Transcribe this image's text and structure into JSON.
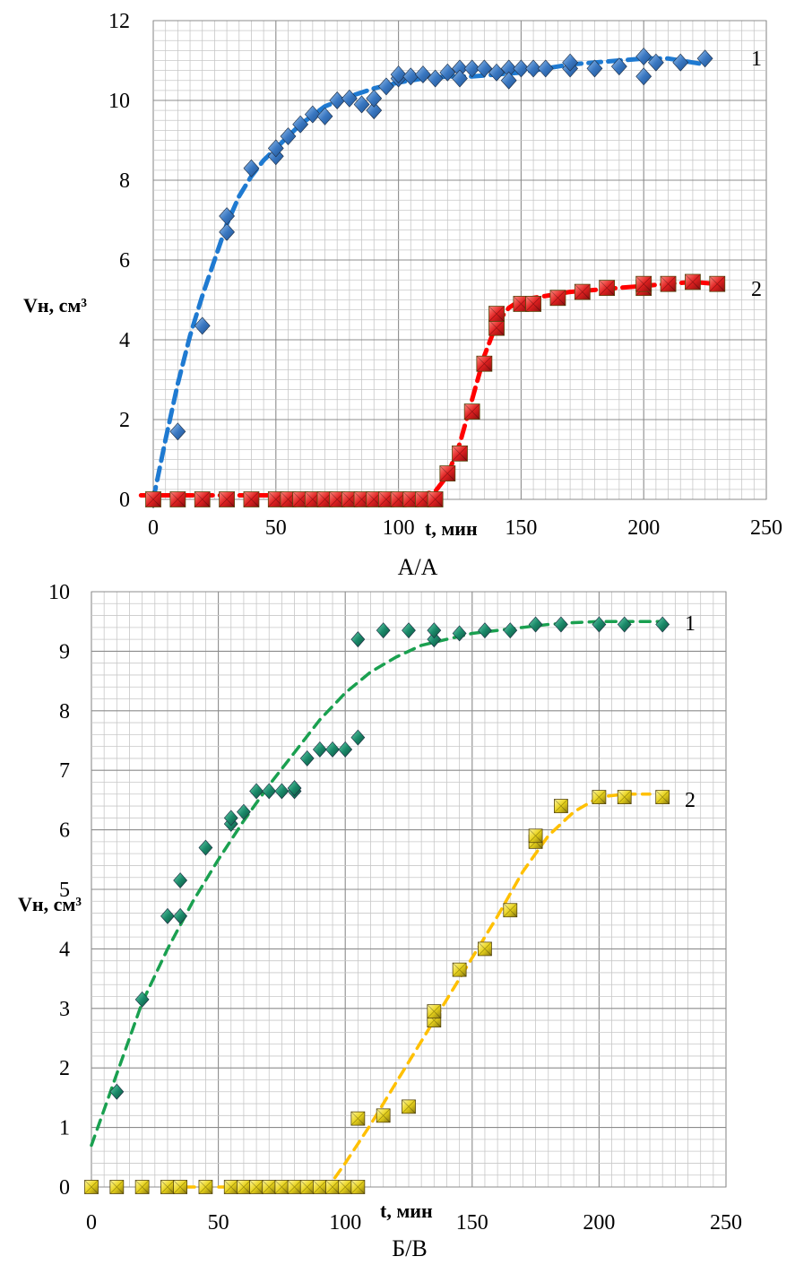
{
  "chart_data": [
    {
      "type": "scatter",
      "caption": "А/А",
      "ylabel": "Vн, см³",
      "xlabel": "t, мин",
      "xlim": [
        0,
        250
      ],
      "ylim": [
        0,
        12
      ],
      "xticks": [
        "0",
        "50",
        "100",
        "150",
        "200",
        "250"
      ],
      "yticks": [
        "0",
        "2",
        "4",
        "6",
        "8",
        "10",
        "12"
      ],
      "grid": true,
      "series": [
        {
          "name": "1",
          "marker": "diamond",
          "color": "#3a78c2",
          "trend_color": "#1f7ad1",
          "x": [
            0,
            10,
            20,
            30,
            30,
            40,
            50,
            50,
            55,
            60,
            65,
            70,
            75,
            80,
            85,
            90,
            90,
            95,
            100,
            100,
            105,
            110,
            115,
            120,
            125,
            125,
            130,
            135,
            140,
            145,
            145,
            150,
            155,
            160,
            170,
            170,
            180,
            190,
            200,
            200,
            205,
            215,
            225
          ],
          "y": [
            0,
            1.7,
            4.35,
            6.7,
            7.1,
            8.3,
            8.6,
            8.8,
            9.1,
            9.4,
            9.65,
            9.6,
            10.0,
            10.05,
            9.9,
            9.75,
            10.05,
            10.35,
            10.55,
            10.65,
            10.6,
            10.65,
            10.55,
            10.7,
            10.8,
            10.55,
            10.8,
            10.8,
            10.7,
            10.8,
            10.5,
            10.8,
            10.8,
            10.8,
            10.8,
            10.95,
            10.8,
            10.85,
            10.6,
            11.1,
            10.95,
            10.95,
            11.05
          ],
          "trend_x": [
            0,
            5,
            10,
            15,
            20,
            25,
            30,
            35,
            40,
            45,
            50,
            60,
            70,
            80,
            90,
            100,
            110,
            120,
            130,
            140,
            150,
            160,
            170,
            180,
            190,
            200,
            210,
            220,
            225
          ],
          "trend_y": [
            0,
            1.5,
            2.9,
            4.1,
            5.1,
            6.0,
            6.9,
            7.6,
            8.1,
            8.5,
            8.8,
            9.4,
            9.85,
            10.1,
            10.3,
            10.45,
            10.55,
            10.6,
            10.6,
            10.65,
            10.7,
            10.8,
            10.9,
            10.95,
            11.0,
            11.05,
            11.05,
            10.95,
            10.9
          ]
        },
        {
          "name": "2",
          "marker": "square",
          "color": "#e02020",
          "trend_color": "#ff0000",
          "x": [
            0,
            10,
            20,
            30,
            40,
            50,
            55,
            60,
            65,
            70,
            75,
            80,
            85,
            90,
            95,
            100,
            105,
            110,
            115,
            120,
            125,
            130,
            135,
            140,
            140,
            150,
            155,
            165,
            175,
            185,
            200,
            200,
            210,
            220,
            230
          ],
          "y": [
            0,
            0,
            0,
            0,
            0,
            0,
            0,
            0,
            0,
            0,
            0,
            0,
            0,
            0,
            0,
            0,
            0,
            0,
            0,
            0.65,
            1.15,
            2.2,
            3.4,
            4.3,
            4.65,
            4.9,
            4.9,
            5.05,
            5.2,
            5.3,
            5.3,
            5.4,
            5.4,
            5.45,
            5.4
          ],
          "trend_x": [
            -5,
            0,
            20,
            40,
            60,
            80,
            100,
            110,
            115,
            120,
            125,
            130,
            135,
            140,
            145,
            150,
            160,
            170,
            180,
            190,
            200,
            210,
            220,
            230
          ],
          "trend_y": [
            0.1,
            0.1,
            0.1,
            0.1,
            0.1,
            0.1,
            0.1,
            0.12,
            0.2,
            0.6,
            1.4,
            2.5,
            3.6,
            4.4,
            4.8,
            5.0,
            5.1,
            5.2,
            5.25,
            5.3,
            5.35,
            5.4,
            5.45,
            5.4
          ]
        }
      ]
    },
    {
      "type": "scatter",
      "caption": "Б/В",
      "ylabel": "Vн, см³",
      "xlabel": "t, мин",
      "xlim": [
        0,
        250
      ],
      "ylim": [
        0,
        10
      ],
      "xticks": [
        "0",
        "50",
        "100",
        "150",
        "200",
        "250"
      ],
      "yticks": [
        "0",
        "1",
        "2",
        "3",
        "4",
        "5",
        "6",
        "7",
        "8",
        "9",
        "10"
      ],
      "grid": true,
      "series": [
        {
          "name": "1",
          "marker": "diamond",
          "color": "#1a8a6a",
          "trend_color": "#1aa050",
          "x": [
            10,
            20,
            30,
            35,
            35,
            45,
            55,
            55,
            60,
            65,
            70,
            75,
            80,
            80,
            85,
            90,
            95,
            100,
            105,
            105,
            115,
            125,
            135,
            135,
            145,
            155,
            165,
            175,
            185,
            200,
            210,
            225
          ],
          "y": [
            1.6,
            3.15,
            4.55,
            4.55,
            5.15,
            5.7,
            6.1,
            6.2,
            6.3,
            6.65,
            6.65,
            6.65,
            6.65,
            6.7,
            7.2,
            7.35,
            7.35,
            7.35,
            7.55,
            9.2,
            9.35,
            9.35,
            9.2,
            9.35,
            9.3,
            9.35,
            9.35,
            9.45,
            9.45,
            9.45,
            9.45,
            9.45
          ],
          "trend_x": [
            0,
            5,
            10,
            15,
            20,
            30,
            40,
            50,
            60,
            70,
            80,
            90,
            100,
            110,
            120,
            130,
            140,
            150,
            160,
            170,
            180,
            190,
            200,
            210,
            225
          ],
          "trend_y": [
            0.7,
            1.3,
            1.9,
            2.5,
            3.1,
            4.0,
            4.8,
            5.5,
            6.15,
            6.75,
            7.3,
            7.85,
            8.3,
            8.65,
            8.9,
            9.1,
            9.2,
            9.3,
            9.35,
            9.4,
            9.45,
            9.48,
            9.5,
            9.5,
            9.5
          ]
        },
        {
          "name": "2",
          "marker": "square",
          "color": "#e8d21a",
          "trend_color": "#ffc000",
          "x": [
            0,
            10,
            20,
            30,
            35,
            45,
            55,
            60,
            65,
            70,
            75,
            80,
            85,
            90,
            95,
            100,
            105,
            105,
            115,
            125,
            135,
            135,
            145,
            155,
            165,
            175,
            175,
            185,
            200,
            210,
            225
          ],
          "y": [
            0,
            0,
            0,
            0,
            0,
            0,
            0,
            0,
            0,
            0,
            0,
            0,
            0,
            0,
            0,
            0,
            0,
            1.15,
            1.2,
            1.35,
            2.8,
            2.95,
            3.65,
            4.0,
            4.65,
            5.8,
            5.9,
            6.4,
            6.55,
            6.55,
            6.55
          ],
          "trend_x": [
            30,
            60,
            90,
            95,
            100,
            110,
            120,
            130,
            140,
            150,
            160,
            170,
            180,
            190,
            200,
            210,
            220
          ],
          "trend_y": [
            0,
            0,
            0,
            0.1,
            0.4,
            1.05,
            1.75,
            2.45,
            3.15,
            3.85,
            4.55,
            5.3,
            5.9,
            6.3,
            6.55,
            6.6,
            6.6
          ]
        }
      ]
    }
  ]
}
